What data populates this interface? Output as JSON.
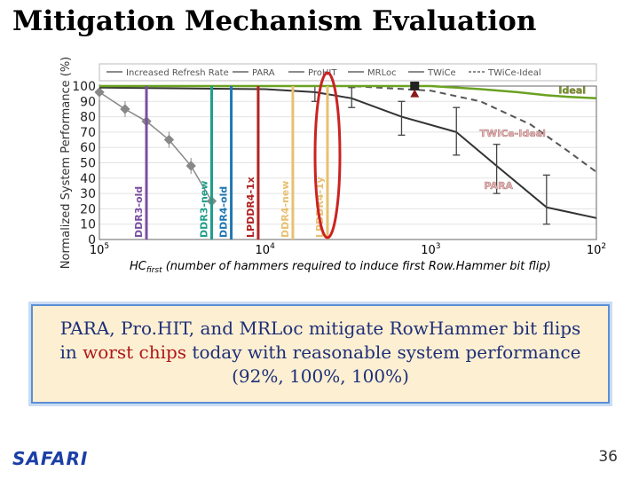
{
  "slide": {
    "title": "Mitigation Mechanism Evaluation",
    "callout": {
      "part1": "PARA, Pro.HIT, and MRLoc",
      "part2": " mitigate RowHammer bit flips",
      "part3": "in ",
      "part4": "worst chips",
      "part5": " today with reasonable system performance",
      "part6": "(92%, 100%, 100%)"
    },
    "logo": "SAFARI",
    "page_number": "36"
  },
  "colors": {
    "para": "#333333",
    "twice_ideal": "#555555",
    "ideal": "#6aa121",
    "annot_text_pink": "#e8b7b7",
    "callout_text": "#1e2f78",
    "callout_red": "#b01818",
    "ddr3_old": "#7a4fa0",
    "ddr3_new": "#1f9e8a",
    "ddr4_old": "#1f77b4",
    "lpddr4_1x": "#b22222",
    "ddr4_new": "#e8c070",
    "lpddr4_1y": "#e8c070",
    "circle": "#cc2222"
  },
  "chart_data": {
    "type": "line",
    "ylabel": "Normalized System Performance (%)",
    "xlabel_pre": "HC",
    "xlabel_sub": "first",
    "xlabel_post": " (number of hammers required to induce first Row.Hammer bit flip)",
    "x_scale": "log-reversed",
    "xlim": [
      100000,
      100
    ],
    "ylim": [
      0,
      100
    ],
    "y_ticks": [
      0,
      10,
      20,
      30,
      40,
      50,
      60,
      70,
      80,
      90,
      100
    ],
    "x_ticks": [
      {
        "value": 100000,
        "base": "10",
        "exp": "5"
      },
      {
        "value": 10000,
        "base": "10",
        "exp": "4"
      },
      {
        "value": 1000,
        "base": "10",
        "exp": "3"
      },
      {
        "value": 100,
        "base": "10",
        "exp": "2"
      }
    ],
    "legend": {
      "placement": "top",
      "entries": [
        {
          "label": "Increased Refresh Rate"
        },
        {
          "label": "PARA"
        },
        {
          "label": "ProHIT"
        },
        {
          "label": "MRLoc"
        },
        {
          "label": "TWiCe"
        },
        {
          "label": "TWiCe-Ideal"
        }
      ]
    },
    "series": [
      {
        "name": "Increased Refresh Rate",
        "style": "gray-errorbars",
        "points": [
          {
            "x": 100000,
            "y": 96
          },
          {
            "x": 70000,
            "y": 85
          },
          {
            "x": 52000,
            "y": 77
          },
          {
            "x": 38000,
            "y": 65
          },
          {
            "x": 28000,
            "y": 48
          },
          {
            "x": 21000,
            "y": 25
          }
        ]
      },
      {
        "name": "PARA",
        "style": "dark-solid",
        "points": [
          {
            "x": 100000,
            "y": 99
          },
          {
            "x": 10000,
            "y": 98
          },
          {
            "x": 5000,
            "y": 96
          },
          {
            "x": 3000,
            "y": 92
          },
          {
            "x": 1500,
            "y": 80
          },
          {
            "x": 700,
            "y": 70
          },
          {
            "x": 400,
            "y": 48
          },
          {
            "x": 200,
            "y": 21
          },
          {
            "x": 100,
            "y": 14
          }
        ],
        "errors": [
          {
            "x": 5000,
            "lo": 90,
            "hi": 100
          },
          {
            "x": 3000,
            "lo": 86,
            "hi": 99
          },
          {
            "x": 1500,
            "lo": 68,
            "hi": 90
          },
          {
            "x": 700,
            "lo": 55,
            "hi": 86
          },
          {
            "x": 400,
            "lo": 30,
            "hi": 62
          },
          {
            "x": 200,
            "lo": 10,
            "hi": 42
          }
        ]
      },
      {
        "name": "TWiCe-Ideal",
        "style": "dashed",
        "points": [
          {
            "x": 100000,
            "y": 100
          },
          {
            "x": 3000,
            "y": 100
          },
          {
            "x": 1000,
            "y": 97
          },
          {
            "x": 500,
            "y": 90
          },
          {
            "x": 250,
            "y": 75
          },
          {
            "x": 150,
            "y": 58
          },
          {
            "x": 100,
            "y": 44
          }
        ]
      },
      {
        "name": "Ideal",
        "style": "green",
        "points": [
          {
            "x": 100000,
            "y": 100
          },
          {
            "x": 1000,
            "y": 100
          },
          {
            "x": 500,
            "y": 98
          },
          {
            "x": 300,
            "y": 96
          },
          {
            "x": 200,
            "y": 94
          },
          {
            "x": 150,
            "y": 93
          },
          {
            "x": 100,
            "y": 92
          }
        ]
      },
      {
        "name": "MRLoc",
        "style": "marker",
        "points": [
          {
            "x": 1250,
            "y": 100
          },
          {
            "x": 1250,
            "y": 95
          }
        ]
      }
    ],
    "annotations": [
      {
        "text": "Ideal",
        "x": 140,
        "y": 95,
        "color_key": "ideal"
      },
      {
        "text": "TWICe-Ideal",
        "x": 320,
        "y": 67,
        "color_key": "annot_text_pink"
      },
      {
        "text": "PARA",
        "x": 390,
        "y": 33,
        "color_key": "annot_text_pink"
      }
    ],
    "vertical_markers": [
      {
        "label": "DDR3-old",
        "x": 52000,
        "color_key": "ddr3_old",
        "bar_top": 100
      },
      {
        "label": "DDR3-new",
        "x": 21000,
        "color_key": "ddr3_new",
        "bar_top": 100
      },
      {
        "label": "DDR4-old",
        "x": 16000,
        "color_key": "ddr4_old",
        "bar_top": 100
      },
      {
        "label": "LPDDR4-1x",
        "x": 11000,
        "color_key": "lpddr4_1x",
        "bar_top": 100
      },
      {
        "label": "DDR4-new",
        "x": 6800,
        "color_key": "ddr4_new",
        "bar_top": 100
      },
      {
        "label": "LPDDR4-1y",
        "x": 4200,
        "color_key": "lpddr4_1y",
        "bar_top": 100
      }
    ]
  }
}
